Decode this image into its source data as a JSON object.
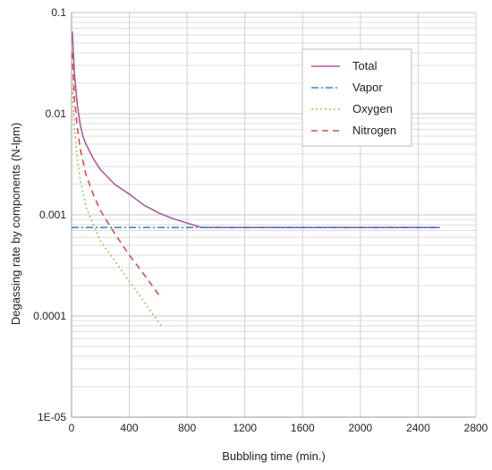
{
  "chart_data": {
    "type": "line",
    "xlabel": "Bubbling time (min.)",
    "ylabel": "Degassing rate by components (N-lpm)",
    "xlim": [
      0,
      2800
    ],
    "x_ticks": [
      0,
      400,
      800,
      1200,
      1600,
      2000,
      2400,
      2800
    ],
    "x_tick_labels": [
      "0",
      "400",
      "800",
      "1200",
      "1600",
      "2000",
      "2400",
      "2800"
    ],
    "ylim": [
      1e-05,
      0.1
    ],
    "y_scale": "log",
    "y_ticks": [
      1e-05,
      0.0001,
      0.001,
      0.01,
      0.1
    ],
    "y_tick_labels": [
      "1E-05",
      "0.0001",
      "0.001",
      "0.01",
      "0.1"
    ],
    "grid": true,
    "legend_position": "top-right",
    "series": [
      {
        "name": "Total",
        "color": "#b05a9e",
        "dash": "solid",
        "x": [
          5,
          20,
          40,
          60,
          80,
          100,
          150,
          200,
          300,
          400,
          500,
          600,
          700,
          800,
          900,
          1200,
          1600,
          2000,
          2400,
          2550
        ],
        "y": [
          0.065,
          0.025,
          0.012,
          0.0078,
          0.0059,
          0.005,
          0.0036,
          0.0028,
          0.002,
          0.0016,
          0.00125,
          0.00105,
          0.00092,
          0.00083,
          0.00075,
          0.00075,
          0.00075,
          0.00075,
          0.00075,
          0.00075
        ]
      },
      {
        "name": "Vapor",
        "color": "#3a86c8",
        "dash": "dash-dot",
        "x": [
          0,
          500,
          1000,
          1500,
          2000,
          2550
        ],
        "y": [
          0.00075,
          0.00075,
          0.00075,
          0.00075,
          0.00075,
          0.00075
        ]
      },
      {
        "name": "Oxygen",
        "color": "#a6c35a",
        "dash": "dotted",
        "x": [
          5,
          20,
          40,
          60,
          100,
          150,
          200,
          300,
          400,
          500,
          620
        ],
        "y": [
          0.02,
          0.007,
          0.0035,
          0.0022,
          0.0012,
          0.0008,
          0.00055,
          0.00035,
          0.00022,
          0.00014,
          8e-05
        ]
      },
      {
        "name": "Nitrogen",
        "color": "#d2504e",
        "dash": "dashed",
        "x": [
          5,
          20,
          40,
          60,
          100,
          150,
          200,
          300,
          400,
          500,
          620
        ],
        "y": [
          0.04,
          0.014,
          0.0072,
          0.0045,
          0.0025,
          0.0016,
          0.0011,
          0.00065,
          0.0004,
          0.00026,
          0.00015
        ]
      }
    ]
  }
}
